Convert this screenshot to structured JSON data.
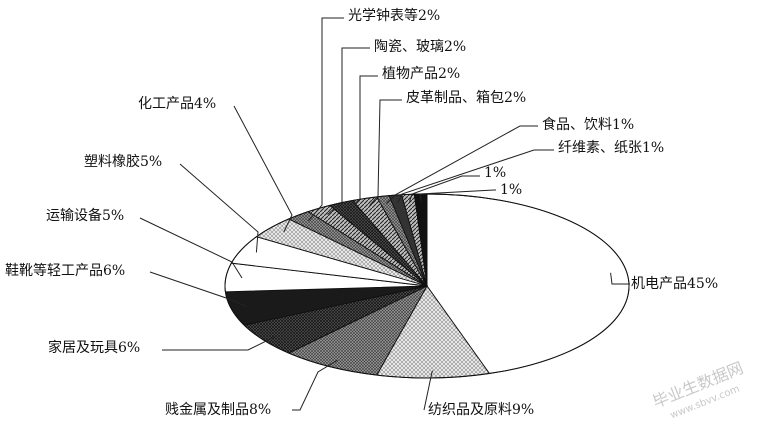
{
  "chart_data": {
    "type": "pie",
    "title": "",
    "slices": [
      {
        "label": "机电产品45%",
        "value": 45,
        "fill": "#ffffff"
      },
      {
        "label": "纺织品及原料9%",
        "value": 9,
        "fill": "url(#p-light-cross)"
      },
      {
        "label": "贱金属及制品8%",
        "value": 8,
        "fill": "url(#p-med-cross)"
      },
      {
        "label": "家居及玩具6%",
        "value": 6,
        "fill": "url(#p-dark-cross)"
      },
      {
        "label": "鞋靴等轻工产品6%",
        "value": 6,
        "fill": "#1a1a1a"
      },
      {
        "label": "运输设备5%",
        "value": 5,
        "fill": "#ffffff"
      },
      {
        "label": "塑料橡胶5%",
        "value": 5,
        "fill": "#ffffff"
      },
      {
        "label": "化工产品4%",
        "value": 4,
        "fill": "url(#p-light-cross)"
      },
      {
        "label": "光学钟表等2%",
        "value": 2,
        "fill": "url(#p-med-cross)"
      },
      {
        "label": "陶瓷、玻璃2%",
        "value": 2,
        "fill": "url(#p-diag)"
      },
      {
        "label": "植物产品2%",
        "value": 2,
        "fill": "url(#p-dark-cross)"
      },
      {
        "label": "皮革制品、箱包2%",
        "value": 2,
        "fill": "url(#p-diag)"
      },
      {
        "label": "食品、饮料1%",
        "value": 1,
        "fill": "url(#p-med-cross)"
      },
      {
        "label": "纤维素、纸张1%",
        "value": 1,
        "fill": "#333333"
      },
      {
        "label": "1%",
        "value": 1,
        "fill": "url(#p-diag)"
      },
      {
        "label": "1%",
        "value": 1,
        "fill": "#111111"
      }
    ]
  },
  "watermark": {
    "cn": "毕业生数据网",
    "url": "www.sbvv.com"
  }
}
